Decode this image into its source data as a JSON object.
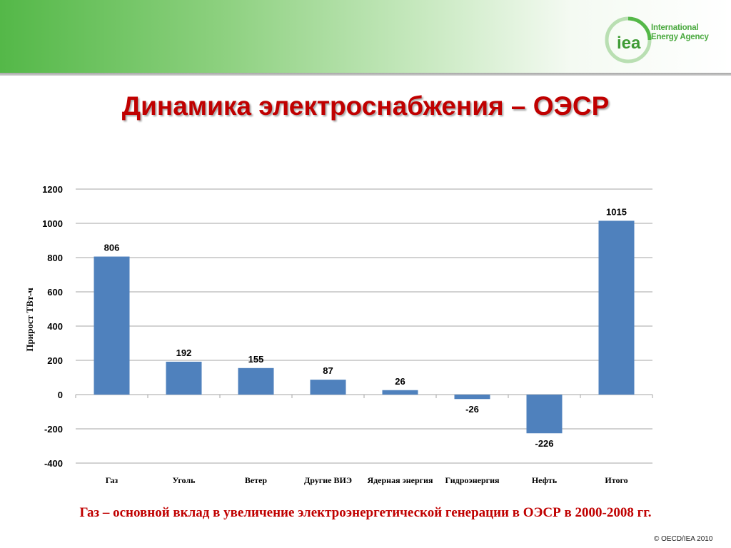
{
  "header": {
    "logo_text_line1": "International",
    "logo_text_line2": "Energy Agency",
    "logo_mark": "iea"
  },
  "slide": {
    "title": "Динамика электроснабжения – ОЭСР",
    "caption": "Газ – основной вклад в увеличение электроэнергетической генерации в ОЭСР в 2000-2008 гг.",
    "copyright": "© OECD/IEA 2010"
  },
  "colors": {
    "bar": "#4f81bd",
    "title": "#c00000",
    "brand_green": "#54b848"
  },
  "chart_data": {
    "type": "bar",
    "categories": [
      "Газ",
      "Уголь",
      "Ветер",
      "Другие ВИЭ",
      "Ядерная энергия",
      "Гидроэнергия",
      "Нефть",
      "Итого"
    ],
    "values": [
      806,
      192,
      155,
      87,
      26,
      -26,
      -226,
      1015
    ],
    "data_labels": [
      "806",
      "192",
      "155",
      "87",
      "26",
      "-26",
      "-226",
      "1015"
    ],
    "ylabel": "Прирост ТВт-ч",
    "ylim": [
      -400,
      1200
    ],
    "yticks": [
      -400,
      -200,
      0,
      200,
      400,
      600,
      800,
      1000,
      1200
    ],
    "grid": true,
    "legend": "none"
  }
}
